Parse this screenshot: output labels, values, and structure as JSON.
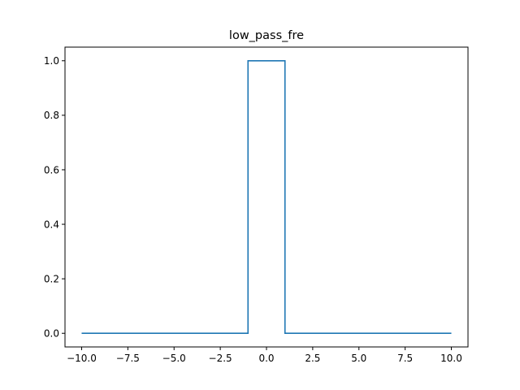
{
  "chart_data": {
    "type": "line",
    "title": "low_pass_fre",
    "xlabel": "",
    "ylabel": "",
    "xlim": [
      -10.9,
      10.9
    ],
    "ylim": [
      -0.05,
      1.05
    ],
    "xticks": [
      -10.0,
      -7.5,
      -5.0,
      -2.5,
      0.0,
      2.5,
      5.0,
      7.5,
      10.0
    ],
    "xtick_labels": [
      "−10.0",
      "−7.5",
      "−5.0",
      "−2.5",
      "0.0",
      "2.5",
      "5.0",
      "7.5",
      "10.0"
    ],
    "yticks": [
      0.0,
      0.2,
      0.4,
      0.6,
      0.8,
      1.0
    ],
    "ytick_labels": [
      "0.0",
      "0.2",
      "0.4",
      "0.6",
      "0.8",
      "1.0"
    ],
    "grid": false,
    "legend": "none",
    "series": [
      {
        "color": "#1f77b4",
        "x": [
          -10.0,
          -1.0,
          -1.0,
          1.0,
          1.0,
          10.0
        ],
        "y": [
          0.0,
          0.0,
          1.0,
          1.0,
          0.0,
          0.0
        ]
      }
    ]
  }
}
